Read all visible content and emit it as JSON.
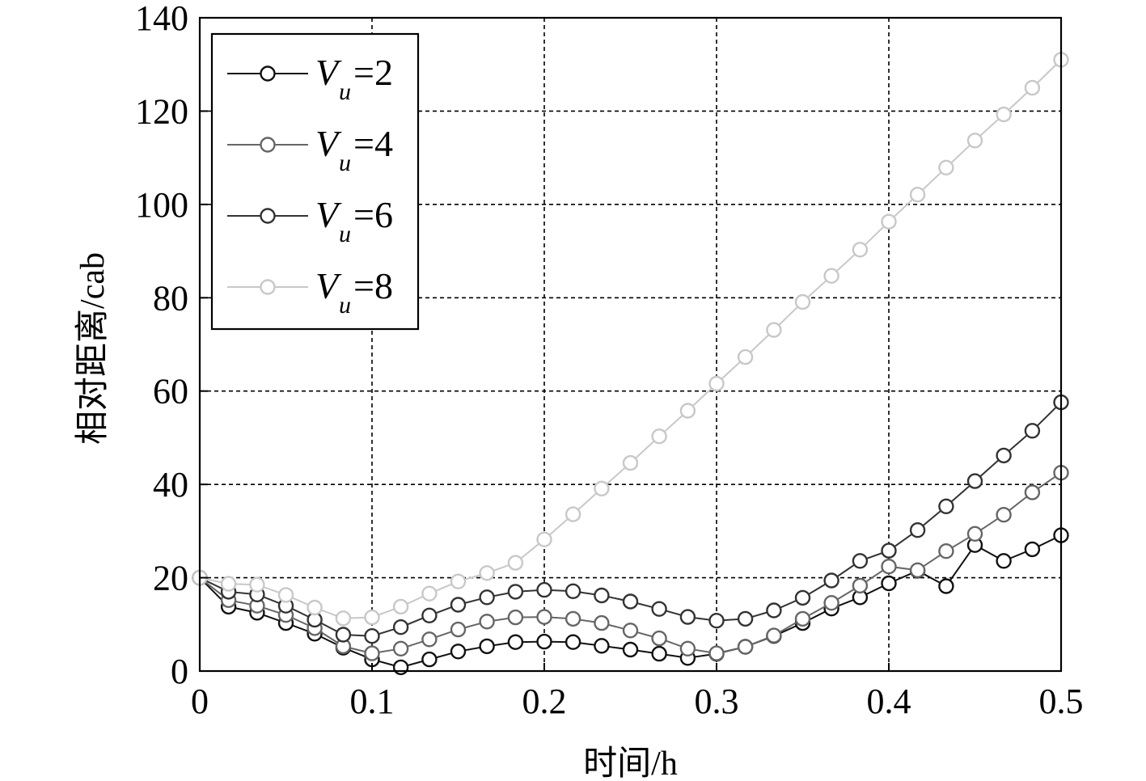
{
  "chart_data": {
    "type": "line",
    "xlabel": "时间/h",
    "ylabel": "相对距离/cab",
    "xlim": [
      0,
      0.5
    ],
    "ylim": [
      0,
      140
    ],
    "xticks": [
      "0",
      "0.1",
      "0.2",
      "0.3",
      "0.4",
      "0.5"
    ],
    "yticks": [
      "0",
      "20",
      "40",
      "60",
      "80",
      "100",
      "120",
      "140"
    ],
    "grid": true,
    "legend_position": "top-left",
    "x": [
      0,
      0.0167,
      0.0333,
      0.05,
      0.0667,
      0.0833,
      0.1,
      0.1167,
      0.1333,
      0.15,
      0.1667,
      0.1833,
      0.2,
      0.2167,
      0.2333,
      0.25,
      0.2667,
      0.2833,
      0.3,
      0.3167,
      0.3333,
      0.35,
      0.3667,
      0.3833,
      0.4,
      0.4167,
      0.4333,
      0.45,
      0.4667,
      0.4833,
      0.5
    ],
    "series": [
      {
        "name": "V",
        "subscript": "u",
        "value_label": "=2",
        "color": "#111111",
        "values": [
          20,
          13.8,
          12.5,
          10.3,
          8,
          5,
          2.5,
          0.8,
          2.5,
          4.2,
          5.3,
          6.2,
          6.3,
          6.2,
          5.4,
          4.6,
          3.7,
          2.8,
          3.7,
          5.2,
          7.5,
          10.3,
          13.4,
          15.8,
          18.8,
          21.5,
          18.2,
          27,
          23.6,
          26.1,
          29.1
        ]
      },
      {
        "name": "V",
        "subscript": "u",
        "value_label": "=4",
        "color": "#666666",
        "values": [
          20,
          15.2,
          14,
          12,
          9.2,
          5.3,
          3.8,
          4.8,
          6.8,
          8.9,
          10.6,
          11.5,
          11.6,
          11.2,
          10.3,
          8.7,
          7,
          4.8,
          3.8,
          5.2,
          7.6,
          11.2,
          14.6,
          18.3,
          22.4,
          21.6,
          25.7,
          29.4,
          33.5,
          38.3,
          42.5
        ]
      },
      {
        "name": "V",
        "subscript": "u",
        "value_label": "=6",
        "color": "#333333",
        "values": [
          20,
          17,
          16.4,
          14,
          11,
          7.8,
          7.5,
          9.4,
          11.9,
          14.2,
          15.8,
          17,
          17.4,
          17.1,
          16.2,
          14.9,
          13.3,
          11.6,
          10.8,
          11.2,
          13,
          15.7,
          19.4,
          23.6,
          25.8,
          30.2,
          35.3,
          40.7,
          46.2,
          51.5,
          57.6
        ]
      },
      {
        "name": "V",
        "subscript": "u",
        "value_label": "=8",
        "color": "#c8c8c8",
        "values": [
          20,
          18.7,
          18.5,
          16.3,
          13.6,
          11.3,
          11.5,
          13.8,
          16.6,
          19.2,
          21,
          23.2,
          28.2,
          33.6,
          39.1,
          44.6,
          50.3,
          55.8,
          61.6,
          67.3,
          73.1,
          79.1,
          84.7,
          90.3,
          96.3,
          102.1,
          107.9,
          113.7,
          119.3,
          125,
          131
        ]
      }
    ]
  }
}
